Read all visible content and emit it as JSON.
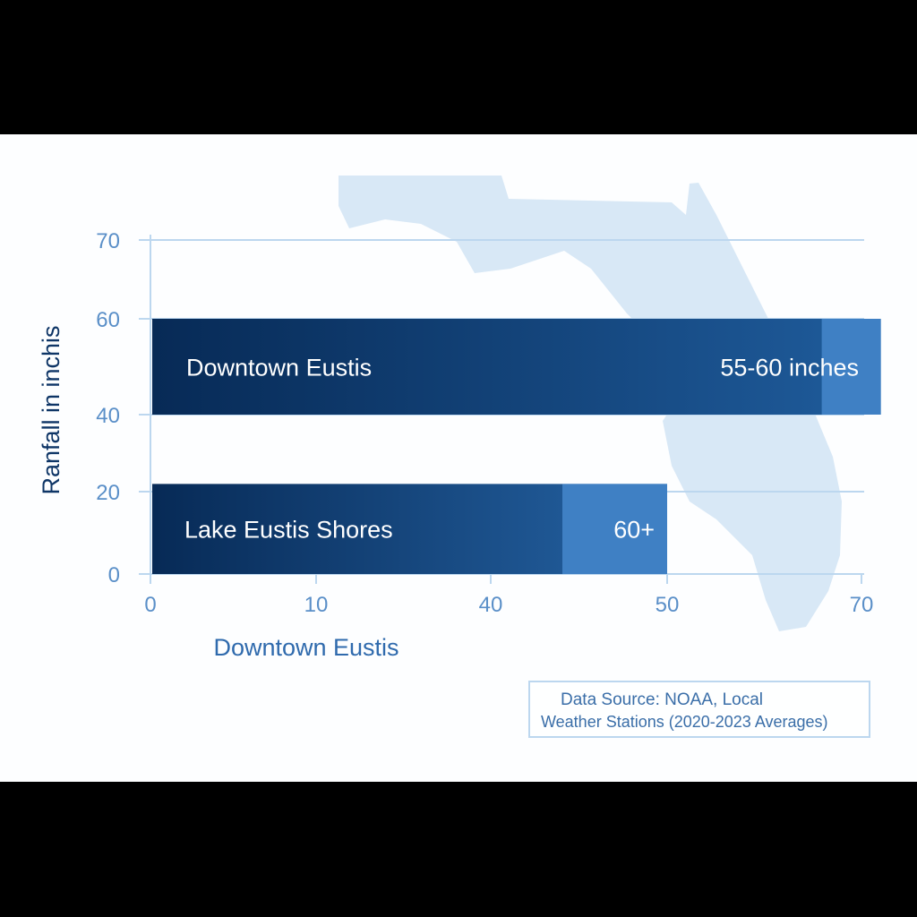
{
  "chart_data": {
    "type": "bar",
    "orientation": "horizontal",
    "title": "",
    "ylabel": "Ranfall in inchis",
    "xlabel": "Downtown Eustis",
    "y_ticks": [
      "70",
      "60",
      "40",
      "20",
      "0"
    ],
    "x_ticks": [
      "0",
      "10",
      "40",
      "50",
      "70"
    ],
    "grid": true,
    "series": [
      {
        "name": "Downtown Eustis",
        "value_label": "55-60 inches",
        "y_range": [
          40,
          60
        ],
        "x_end": 72
      },
      {
        "name": "Lake Eustis Shores",
        "value_label": "60+",
        "y_range": [
          0,
          22
        ],
        "x_end": 50
      }
    ],
    "colors": {
      "bar_dark": "#0a2f5f",
      "bar_mid": "#1f5fa0",
      "bar_light": "#3f80c4",
      "axis": "#bcd7ef",
      "map": "#d8e8f6"
    }
  },
  "source_note": {
    "line1": "Data Source:  NOAA, Local",
    "line2": "Weather Stations (2020-2023 Averages)"
  }
}
